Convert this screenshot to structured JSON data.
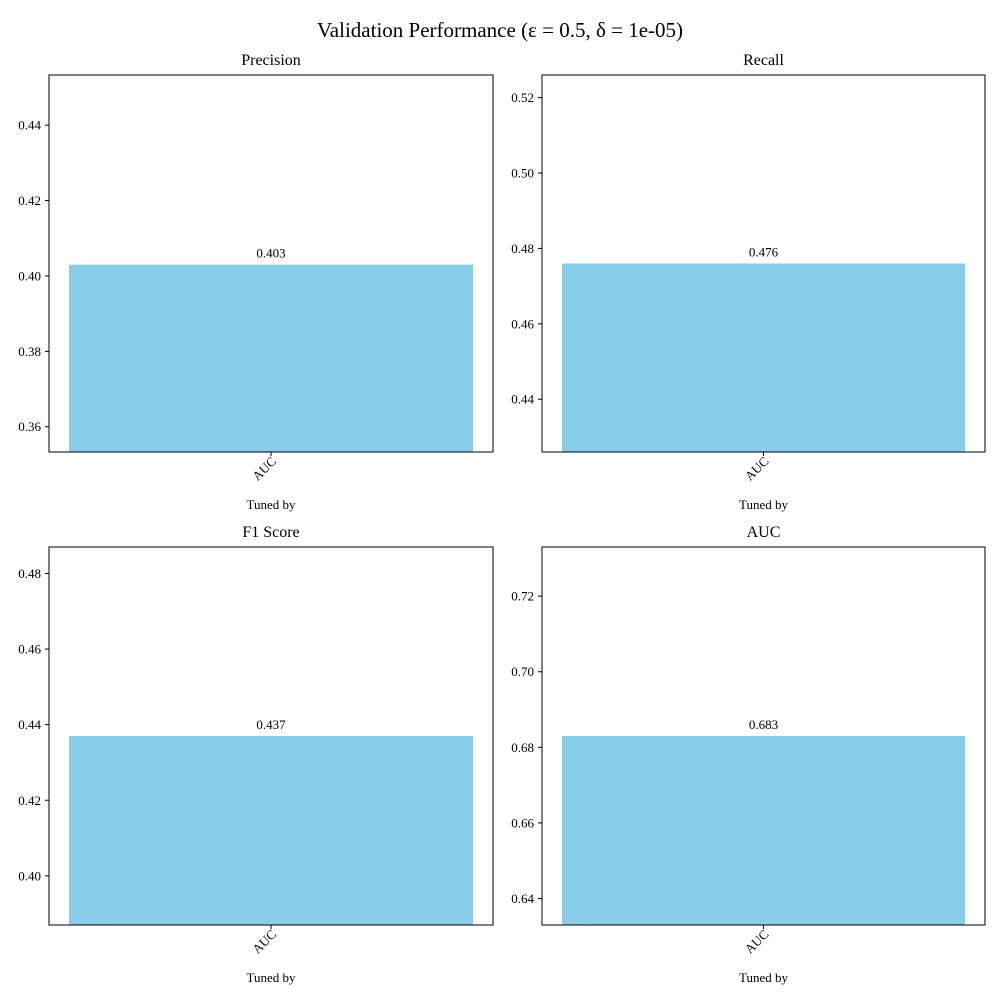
{
  "figure": {
    "title": "Validation Performance (ε = 0.5, δ = 1e-05)"
  },
  "colors": {
    "bar": "#87ceeb",
    "axis": "#000000",
    "background": "#ffffff"
  },
  "chart_data": [
    {
      "type": "bar",
      "title": "Precision",
      "xlabel": "Tuned by",
      "ylabel": "",
      "categories": [
        "AUC"
      ],
      "values": [
        0.403
      ],
      "value_labels": [
        "0.403"
      ],
      "ylim": [
        0.3533,
        0.4533
      ],
      "yticks": [
        0.36,
        0.38,
        0.4,
        0.42,
        0.44
      ],
      "ytick_labels": [
        "0.36",
        "0.38",
        "0.40",
        "0.42",
        "0.44"
      ],
      "grid": false,
      "legend": "none"
    },
    {
      "type": "bar",
      "title": "Recall",
      "xlabel": "Tuned by",
      "ylabel": "",
      "categories": [
        "AUC"
      ],
      "values": [
        0.476
      ],
      "value_labels": [
        "0.476"
      ],
      "ylim": [
        0.426,
        0.526
      ],
      "yticks": [
        0.44,
        0.46,
        0.48,
        0.5,
        0.52
      ],
      "ytick_labels": [
        "0.44",
        "0.46",
        "0.48",
        "0.50",
        "0.52"
      ],
      "grid": false,
      "legend": "none"
    },
    {
      "type": "bar",
      "title": "F1 Score",
      "xlabel": "Tuned by",
      "ylabel": "",
      "categories": [
        "AUC"
      ],
      "values": [
        0.437
      ],
      "value_labels": [
        "0.437"
      ],
      "ylim": [
        0.387,
        0.487
      ],
      "yticks": [
        0.4,
        0.42,
        0.44,
        0.46,
        0.48
      ],
      "ytick_labels": [
        "0.40",
        "0.42",
        "0.44",
        "0.46",
        "0.48"
      ],
      "grid": false,
      "legend": "none"
    },
    {
      "type": "bar",
      "title": "AUC",
      "xlabel": "Tuned by",
      "ylabel": "",
      "categories": [
        "AUC"
      ],
      "values": [
        0.683
      ],
      "value_labels": [
        "0.683"
      ],
      "ylim": [
        0.633,
        0.733
      ],
      "yticks": [
        0.64,
        0.66,
        0.68,
        0.7,
        0.72
      ],
      "ytick_labels": [
        "0.64",
        "0.66",
        "0.68",
        "0.70",
        "0.72"
      ],
      "grid": false,
      "legend": "none"
    }
  ]
}
